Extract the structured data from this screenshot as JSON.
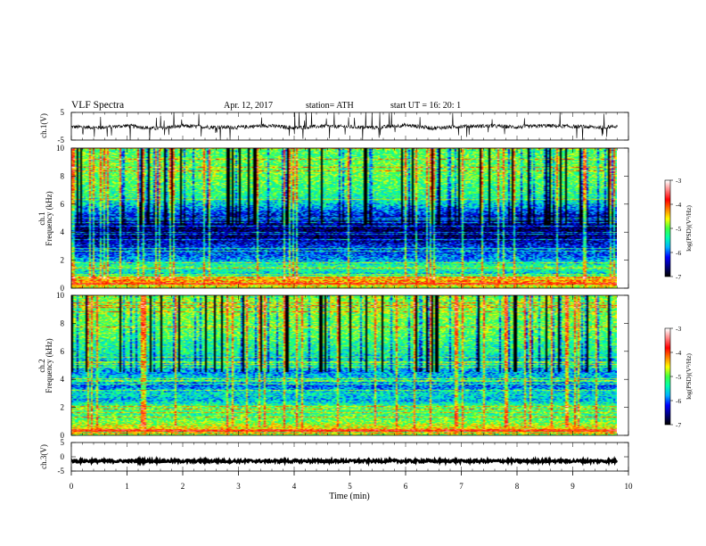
{
  "header": {
    "title": "VLF  Spectra",
    "date": "Apr. 12, 2017",
    "station": "station= ATH",
    "start_ut": "start  UT  =    16: 20: 1"
  },
  "colors": {
    "trace": "#000000",
    "colormap": [
      "#000000",
      "#000080",
      "#0000ff",
      "#00b0ff",
      "#00ffb0",
      "#40ff40",
      "#ffff00",
      "#ff8000",
      "#ff0000",
      "#ff8080",
      "#ffffff"
    ]
  },
  "chart_data": [
    {
      "type": "line",
      "panel": "ch1-waveform",
      "ylabel": "ch.1(V)",
      "ylim": [
        -5,
        5
      ],
      "yticks": [
        "5",
        "-5"
      ],
      "xlim": [
        0,
        10
      ],
      "x": [
        0,
        0.5,
        1,
        1.5,
        2,
        2.5,
        3,
        3.5,
        4,
        4.5,
        5,
        5.5,
        6,
        6.5,
        7,
        7.5,
        8,
        8.5,
        9,
        9.5,
        9.8
      ],
      "y": [
        -0.2,
        -0.5,
        0.2,
        -0.8,
        0.1,
        -0.3,
        -0.4,
        0.3,
        -0.6,
        0.0,
        -0.2,
        -0.5,
        0.4,
        -0.7,
        0.0,
        0.1,
        -0.3,
        0.2,
        -0.1,
        -0.4,
        0.0
      ],
      "spikes": "frequent transient spikes reaching ±5 V"
    },
    {
      "type": "heatmap",
      "panel": "ch1-spectrogram",
      "ylabel": "ch.1\nFrequency  (kHz)",
      "ylim": [
        0,
        10
      ],
      "yticks": [
        "0",
        "2",
        "4",
        "6",
        "8",
        "10"
      ],
      "xlim": [
        0,
        9.8
      ],
      "colorbar": {
        "label": "log(PSD)(V²/Hz)",
        "range": [
          -7,
          -3
        ],
        "ticks": [
          "-3",
          "-4",
          "-5",
          "-6",
          "-7"
        ]
      },
      "profile_freq_khz": [
        0,
        0.5,
        1,
        1.5,
        2,
        2.5,
        3,
        3.5,
        4,
        4.5,
        5,
        5.5,
        6,
        6.5,
        7,
        8,
        9,
        10
      ],
      "profile_log_psd": [
        -4.7,
        -4.2,
        -5.6,
        -5.2,
        -5.8,
        -6.1,
        -6.2,
        -6.6,
        -6.8,
        -6.6,
        -6.4,
        -6.0,
        -5.6,
        -5.3,
        -5.2,
        -5.0,
        -5.0,
        -5.1
      ]
    },
    {
      "type": "heatmap",
      "panel": "ch2-spectrogram",
      "ylabel": "ch.2\nFrequency  (kHz)",
      "ylim": [
        0,
        10
      ],
      "yticks": [
        "0",
        "2",
        "4",
        "6",
        "8",
        "10"
      ],
      "xlim": [
        0,
        9.8
      ],
      "colorbar": {
        "label": "log(PSD)(V²/Hz)",
        "range": [
          -7,
          -3
        ],
        "ticks": [
          "-3",
          "-4",
          "-5",
          "-6",
          "-7"
        ]
      },
      "profile_freq_khz": [
        0,
        0.5,
        1,
        1.5,
        2,
        2.5,
        3,
        3.5,
        4,
        4.5,
        5,
        5.5,
        6,
        6.5,
        7,
        8,
        9,
        10
      ],
      "profile_log_psd": [
        -4.9,
        -4.5,
        -5.0,
        -5.2,
        -5.1,
        -5.7,
        -5.5,
        -6.0,
        -5.6,
        -5.8,
        -5.5,
        -5.6,
        -5.3,
        -5.3,
        -5.1,
        -5.0,
        -4.9,
        -4.9
      ]
    },
    {
      "type": "line",
      "panel": "ch3-waveform",
      "ylabel": "ch.3(V)",
      "ylim": [
        -5,
        5
      ],
      "yticks": [
        "5",
        "0",
        "-5"
      ],
      "xlim": [
        0,
        10
      ],
      "x": [
        0,
        9.8
      ],
      "y": [
        -1.5,
        -1.5
      ],
      "note": "thick flat band around -1.5 V"
    }
  ],
  "xaxis": {
    "label": "Time  (min)",
    "ticks": [
      "0",
      "1",
      "2",
      "3",
      "4",
      "5",
      "6",
      "7",
      "8",
      "9",
      "10"
    ]
  }
}
